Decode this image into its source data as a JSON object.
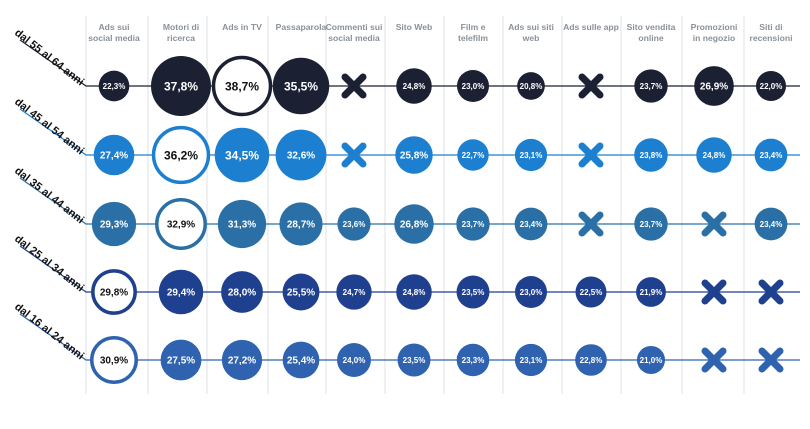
{
  "chart_data": {
    "type": "bubble-matrix",
    "title": "",
    "columns": [
      [
        "Ads sui",
        "social media"
      ],
      [
        "Motori di",
        "ricerca"
      ],
      [
        "Ads in TV"
      ],
      [
        "Passaparola"
      ],
      [
        "Commenti sui",
        "social media"
      ],
      [
        "Sito Web"
      ],
      [
        "Film e",
        "telefilm"
      ],
      [
        "Ads sui siti",
        "web"
      ],
      [
        "Ads sulle app"
      ],
      [
        "Sito vendita",
        "online"
      ],
      [
        "Promozioni",
        "in negozio"
      ],
      [
        "Siti di",
        "recensioni"
      ]
    ],
    "rows": [
      {
        "label": "dal 55 al 64 anni",
        "color": "#1b2033",
        "highlight": 2,
        "values": [
          "22,3%",
          "37,8%",
          "38,7%",
          "35,5%",
          null,
          "24,8%",
          "23,0%",
          "20,8%",
          null,
          "23,7%",
          "26,9%",
          "22,0%"
        ]
      },
      {
        "label": "dal 45 al 54 anni",
        "color": "#1c7fd0",
        "highlight": 1,
        "values": [
          "27,4%",
          "36,2%",
          "34,5%",
          "32,6%",
          null,
          "25,8%",
          "22,7%",
          "23,1%",
          null,
          "23,8%",
          "24,8%",
          "23,4%"
        ]
      },
      {
        "label": "dal 35 al 44 anni",
        "color": "#2a70a6",
        "highlight": 1,
        "values": [
          "29,3%",
          "32,9%",
          "31,3%",
          "28,7%",
          "23,6%",
          "26,8%",
          "23,7%",
          "23,4%",
          null,
          "23,7%",
          null,
          "23,4%"
        ]
      },
      {
        "label": "dal 25 al 34 anni",
        "color": "#1f3f8f",
        "highlight": 0,
        "values": [
          "29,8%",
          "29,4%",
          "28,0%",
          "25,5%",
          "24,7%",
          "24,8%",
          "23,5%",
          "23,0%",
          "22,5%",
          "21,9%",
          null,
          null
        ]
      },
      {
        "label": "dal 16 al 24 anni",
        "color": "#2f63b0",
        "highlight": 0,
        "values": [
          "30,9%",
          "27,5%",
          "27,2%",
          "25,4%",
          "24,0%",
          "23,5%",
          "23,3%",
          "23,1%",
          "22,8%",
          "21,0%",
          null,
          null
        ]
      }
    ]
  }
}
